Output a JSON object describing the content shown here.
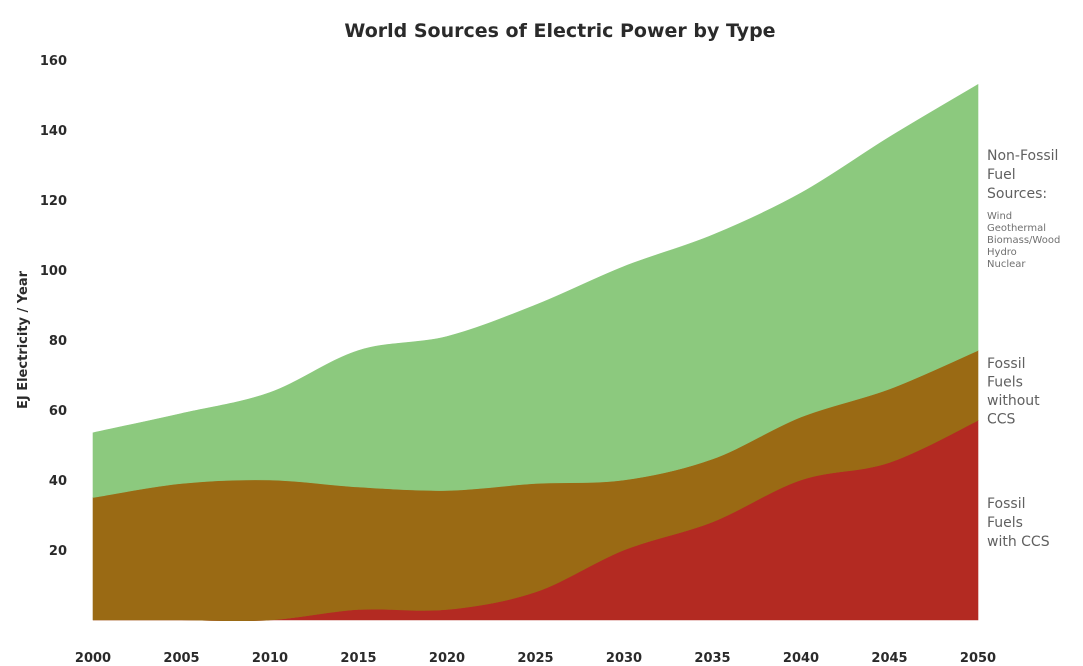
{
  "chart_data": {
    "type": "area",
    "stacked": true,
    "title": "World Sources of Electric Power by Type",
    "xlabel": "",
    "ylabel": "EJ Electricity / Year",
    "xlim": [
      2000,
      2050
    ],
    "ylim": [
      0,
      160
    ],
    "x_ticks": [
      2000,
      2005,
      2010,
      2015,
      2020,
      2025,
      2030,
      2035,
      2040,
      2045,
      2050
    ],
    "y_ticks": [
      20,
      40,
      60,
      80,
      100,
      120,
      140,
      160
    ],
    "grid": false,
    "x": [
      2000,
      2005,
      2010,
      2015,
      2020,
      2025,
      2030,
      2035,
      2040,
      2045,
      2050
    ],
    "series": [
      {
        "name": "Fossil Fuels with CCS",
        "color": "#b32a22",
        "values": [
          0,
          0,
          0,
          3,
          3,
          8,
          20,
          28,
          40,
          45,
          57
        ]
      },
      {
        "name": "Fossil Fuels without CCS",
        "color": "#9a6a14",
        "values": [
          35,
          39,
          40,
          35,
          34,
          31,
          20,
          18,
          18,
          21,
          20
        ]
      },
      {
        "name": "Non-Fossil Fuel Sources",
        "color": "#8cc97e",
        "values": [
          18.5,
          20,
          25,
          39,
          44,
          51,
          61,
          64,
          64,
          72,
          76
        ]
      }
    ],
    "annotations": {
      "non_fossil_lines": [
        "Non-Fossil",
        "Fuel",
        "Sources:"
      ],
      "non_fossil_sub": [
        "Wind",
        "Geothermal",
        "Biomass/Wood",
        "Hydro",
        "Nuclear"
      ],
      "without_ccs_lines": [
        "Fossil",
        "Fuels",
        "without",
        "CCS"
      ],
      "with_ccs_lines": [
        "Fossil",
        "Fuels",
        "with CCS"
      ]
    }
  }
}
